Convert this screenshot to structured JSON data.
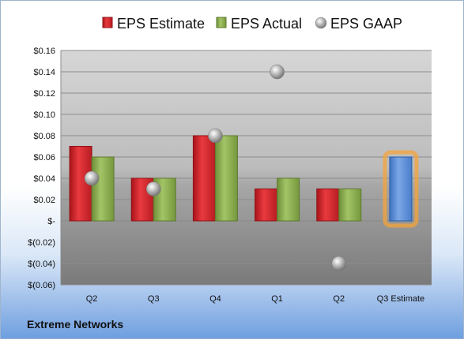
{
  "company": "Extreme Networks",
  "chart_data": {
    "type": "bar",
    "categories": [
      "Q2",
      "Q3",
      "Q4",
      "Q1",
      "Q2",
      "Q3 Estimate"
    ],
    "series": [
      {
        "name": "EPS Estimate",
        "values": [
          0.07,
          0.04,
          0.08,
          0.03,
          0.03,
          null
        ],
        "color": "#d9262c"
      },
      {
        "name": "EPS Actual",
        "values": [
          0.06,
          0.04,
          0.08,
          0.04,
          0.03,
          null
        ],
        "color": "#8fb151"
      },
      {
        "name": "EPS GAAP",
        "type": "scatter",
        "values": [
          0.04,
          0.03,
          0.08,
          0.14,
          -0.04,
          null
        ],
        "color": "#9a9a9a"
      }
    ],
    "highlight": {
      "category": "Q3 Estimate",
      "value": 0.06,
      "color": "#5d8fd6",
      "glow": "#f4a43a"
    },
    "ylim": [
      -0.06,
      0.16
    ],
    "yticks": [
      -0.06,
      -0.04,
      -0.02,
      0,
      0.02,
      0.04,
      0.06,
      0.08,
      0.1,
      0.12,
      0.14,
      0.16
    ],
    "ytick_labels": [
      "$(0.06)",
      "$(0.04)",
      "$(0.02)",
      "$-",
      "$0.02",
      "$0.04",
      "$0.06",
      "$0.08",
      "$0.10",
      "$0.12",
      "$0.14",
      "$0.16"
    ],
    "grid": true,
    "legend": "top"
  }
}
